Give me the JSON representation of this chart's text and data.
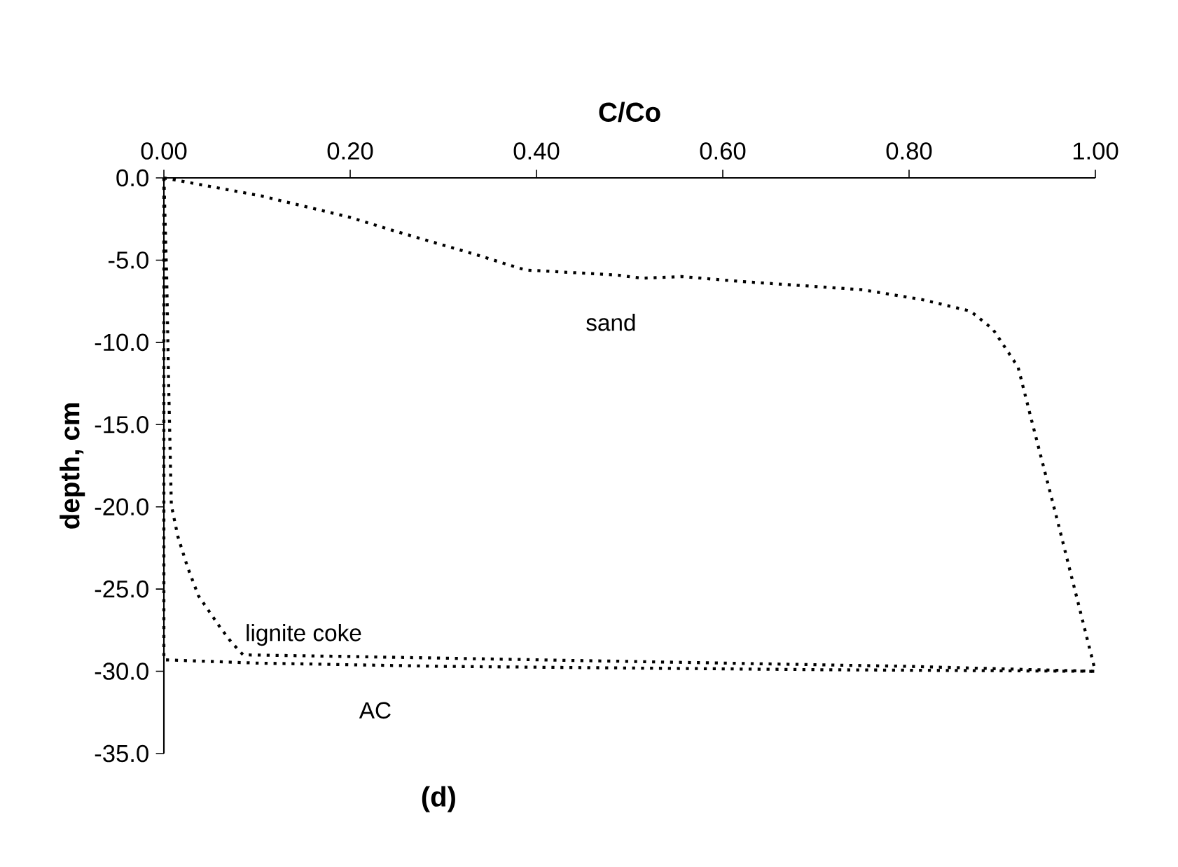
{
  "chart_data": {
    "type": "line",
    "xlabel": "C/Co",
    "ylabel": "depth, cm",
    "xlim": [
      0,
      1
    ],
    "ylim": [
      -35,
      0
    ],
    "xticks": [
      {
        "value": 0,
        "label": "0.00"
      },
      {
        "value": 0.2,
        "label": "0.20"
      },
      {
        "value": 0.4,
        "label": "0.40"
      },
      {
        "value": 0.6,
        "label": "0.60"
      },
      {
        "value": 0.8,
        "label": "0.80"
      },
      {
        "value": 1,
        "label": "1.00"
      }
    ],
    "yticks": [
      {
        "value": 0,
        "label": "0.0"
      },
      {
        "value": -5,
        "label": "-5.0"
      },
      {
        "value": -10,
        "label": "-10.0"
      },
      {
        "value": -15,
        "label": "-15.0"
      },
      {
        "value": -20,
        "label": "-20.0"
      },
      {
        "value": -25,
        "label": "-25.0"
      },
      {
        "value": -30,
        "label": "-30.0"
      },
      {
        "value": -35,
        "label": "-35.0"
      }
    ],
    "line_style": "dotted",
    "marker": "none",
    "grid": false,
    "legend": false,
    "series": [
      {
        "name": "sand",
        "color": "#000000",
        "x": [
          0,
          0.105,
          0.2,
          0.246,
          0.337,
          0.388,
          0.485,
          0.514,
          0.556,
          0.62,
          0.75,
          0.814,
          0.866,
          0.89,
          0.917,
          0.93,
          0.96,
          1.0
        ],
        "values": [
          0,
          -1.1,
          -2.4,
          -3.2,
          -4.7,
          -5.6,
          -5.9,
          -6.1,
          -6.0,
          -6.3,
          -6.8,
          -7.4,
          -8.1,
          -9.2,
          -11.5,
          -14.4,
          -21.0,
          -30.0
        ]
      },
      {
        "name": "lignite coke",
        "color": "#000000",
        "x": [
          0,
          0.003,
          0.005,
          0.008,
          0.015,
          0.025,
          0.037,
          0.06,
          0.072,
          0.085,
          0.2,
          0.4,
          0.6,
          0.8,
          1.0
        ],
        "values": [
          0,
          -6.0,
          -12.3,
          -19.9,
          -21.8,
          -23.6,
          -25.4,
          -27.3,
          -28.2,
          -29.0,
          -29.1,
          -29.3,
          -29.5,
          -29.7,
          -30.0
        ]
      },
      {
        "name": "AC",
        "color": "#000000",
        "x": [
          0,
          0,
          0.1,
          0.3,
          0.5,
          0.7,
          1.0
        ],
        "values": [
          0,
          -29.3,
          -29.5,
          -29.7,
          -29.8,
          -29.9,
          -30.0
        ]
      }
    ],
    "annotations": [
      "(d)"
    ]
  }
}
